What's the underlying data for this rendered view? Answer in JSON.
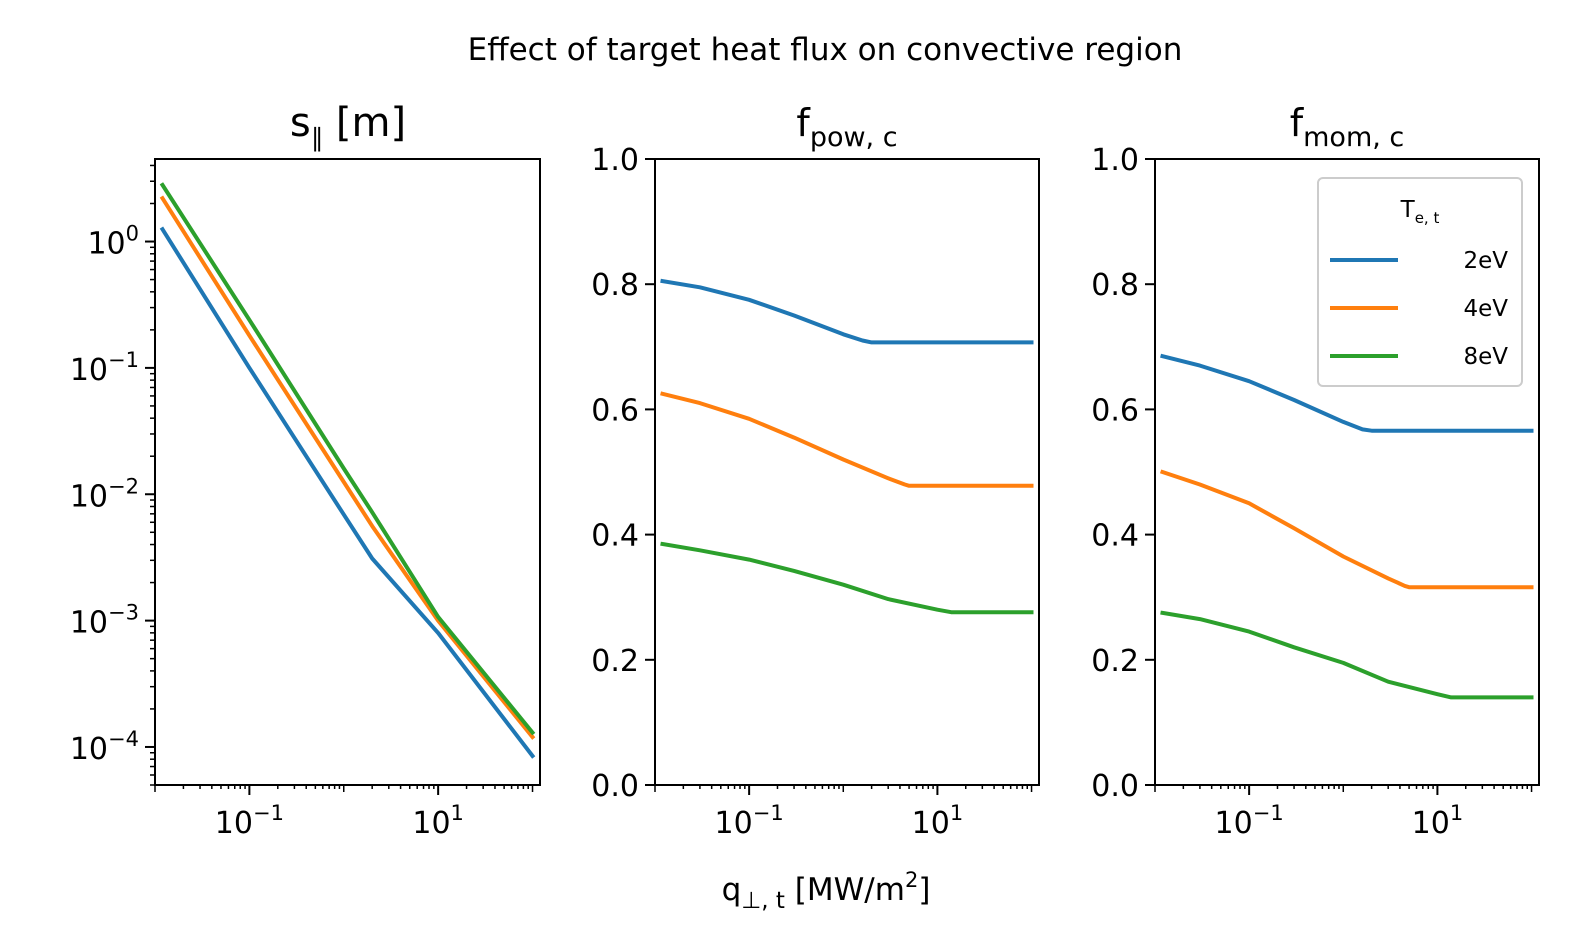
{
  "figure": {
    "suptitle": "Effect of target heat flux on convective region"
  },
  "colors": {
    "2eV": "#1f77b4",
    "4eV": "#ff7f0e",
    "8eV": "#2ca02c",
    "axes": "#000000"
  },
  "legend": {
    "title": "T",
    "title_sub": "e, t",
    "placement": "upper right of third panel",
    "entries": [
      "2eV",
      "4eV",
      "8eV"
    ]
  },
  "chart_data": [
    {
      "type": "line",
      "title": "s",
      "title_sub": "∥",
      "title_suffix": " [m]",
      "xscale": "log",
      "yscale": "log",
      "xlim": [
        0.01,
        120
      ],
      "ylim": [
        5e-05,
        4.5
      ],
      "xticks": [
        {
          "base": "10",
          "exp": "−1",
          "value": 0.1
        },
        {
          "base": "10",
          "exp": "1",
          "value": 10
        }
      ],
      "yticks": [
        {
          "base": "10",
          "exp": "0",
          "value": 1
        },
        {
          "base": "10",
          "exp": "−1",
          "value": 0.1
        },
        {
          "base": "10",
          "exp": "−2",
          "value": 0.01
        },
        {
          "base": "10",
          "exp": "−3",
          "value": 0.001
        },
        {
          "base": "10",
          "exp": "−4",
          "value": 0.0001
        }
      ],
      "series": [
        {
          "name": "2eV",
          "x": [
            0.012,
            0.1,
            1,
            2,
            10,
            100
          ],
          "y": [
            1.25,
            0.1,
            0.0069,
            0.0031,
            0.0008,
            8.5e-05
          ]
        },
        {
          "name": "4eV",
          "x": [
            0.012,
            0.1,
            1,
            2,
            10,
            100
          ],
          "y": [
            2.2,
            0.18,
            0.0125,
            0.0056,
            0.001,
            0.00012
          ]
        },
        {
          "name": "8eV",
          "x": [
            0.012,
            0.1,
            1,
            2,
            10,
            100
          ],
          "y": [
            2.8,
            0.24,
            0.016,
            0.0072,
            0.00107,
            0.00013
          ]
        }
      ]
    },
    {
      "type": "line",
      "title": "f",
      "title_sub": "pow, c",
      "xlabel": "q",
      "xlabel_sub": "⊥, t",
      "xlabel_suffix": " [MW/m",
      "xlabel_sup": "2",
      "xlabel_end": "]",
      "xscale": "log",
      "xlim": [
        0.01,
        120
      ],
      "ylim": [
        0,
        1
      ],
      "xticks": [
        {
          "base": "10",
          "exp": "−1",
          "value": 0.1
        },
        {
          "base": "10",
          "exp": "1",
          "value": 10
        }
      ],
      "yticks": [
        "0.0",
        "0.2",
        "0.4",
        "0.6",
        "0.8",
        "1.0"
      ],
      "series": [
        {
          "name": "2eV",
          "x": [
            0.012,
            0.03,
            0.1,
            0.3,
            1,
            1.6,
            2.0,
            10,
            100
          ],
          "y": [
            0.805,
            0.795,
            0.775,
            0.75,
            0.72,
            0.71,
            0.707,
            0.707,
            0.707
          ]
        },
        {
          "name": "4eV",
          "x": [
            0.012,
            0.03,
            0.1,
            0.3,
            1,
            3,
            4.5,
            5,
            10,
            100
          ],
          "y": [
            0.625,
            0.61,
            0.585,
            0.555,
            0.52,
            0.49,
            0.48,
            0.478,
            0.478,
            0.478
          ]
        },
        {
          "name": "8eV",
          "x": [
            0.012,
            0.03,
            0.1,
            0.3,
            1,
            3,
            10,
            14,
            100
          ],
          "y": [
            0.385,
            0.375,
            0.36,
            0.342,
            0.32,
            0.297,
            0.28,
            0.276,
            0.276
          ]
        }
      ]
    },
    {
      "type": "line",
      "title": "f",
      "title_sub": "mom, c",
      "xscale": "log",
      "xlim": [
        0.01,
        120
      ],
      "ylim": [
        0,
        1
      ],
      "xticks": [
        {
          "base": "10",
          "exp": "−1",
          "value": 0.1
        },
        {
          "base": "10",
          "exp": "1",
          "value": 10
        }
      ],
      "yticks": [
        "0.0",
        "0.2",
        "0.4",
        "0.6",
        "0.8",
        "1.0"
      ],
      "series": [
        {
          "name": "2eV",
          "x": [
            0.012,
            0.03,
            0.1,
            0.3,
            1,
            1.6,
            2.0,
            10,
            100
          ],
          "y": [
            0.685,
            0.67,
            0.645,
            0.615,
            0.58,
            0.568,
            0.566,
            0.566,
            0.566
          ]
        },
        {
          "name": "4eV",
          "x": [
            0.012,
            0.03,
            0.1,
            0.3,
            1,
            3,
            4.5,
            5,
            10,
            100
          ],
          "y": [
            0.5,
            0.48,
            0.45,
            0.41,
            0.365,
            0.33,
            0.318,
            0.316,
            0.316,
            0.316
          ]
        },
        {
          "name": "8eV",
          "x": [
            0.012,
            0.03,
            0.1,
            0.3,
            1,
            3,
            10,
            14,
            100
          ],
          "y": [
            0.275,
            0.265,
            0.245,
            0.22,
            0.195,
            0.165,
            0.145,
            0.14,
            0.14
          ]
        }
      ]
    }
  ]
}
